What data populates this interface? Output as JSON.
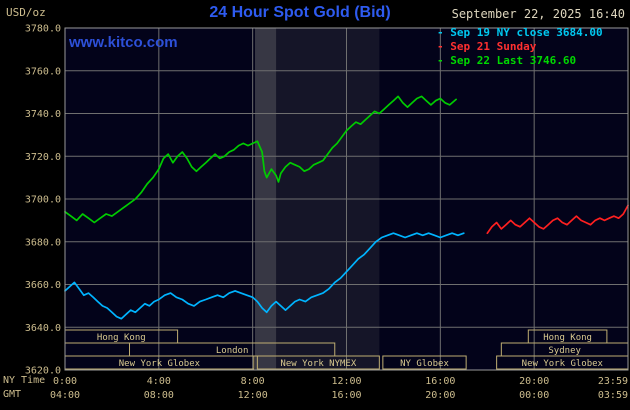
{
  "header": {
    "datetime": "September 22, 2025 16:40",
    "unit_label": "USD/oz",
    "website": "www.kitco.com"
  },
  "colors": {
    "background": "#000000",
    "plot_background": "#03031a",
    "grid": "#6f6f6f",
    "border": "#9a9a9a",
    "axis_text": "#cdbd8e",
    "title_blue": "#2e5bf0",
    "link_blue": "#2d50d8",
    "session_box": "#bfae72",
    "session_text": "#d8c98f",
    "date_text": "#ded6be"
  },
  "chart_data": {
    "type": "line",
    "title": "24 Hour Spot Gold (Bid)",
    "y_unit": "USD/oz",
    "xlim_hours_ny": [
      0,
      24
    ],
    "ylim": [
      3620,
      3780
    ],
    "grid": true,
    "axis": {
      "ny_time_label": "NY Time",
      "gmt_label": "GMT",
      "x_ticks": [
        {
          "hour": 0,
          "ny": "0:00",
          "gmt": "04:00"
        },
        {
          "hour": 4,
          "ny": "4:00",
          "gmt": "08:00"
        },
        {
          "hour": 8,
          "ny": "8:00",
          "gmt": "12:00"
        },
        {
          "hour": 12,
          "ny": "12:00",
          "gmt": "16:00"
        },
        {
          "hour": 16,
          "ny": "16:00",
          "gmt": "20:00"
        },
        {
          "hour": 20,
          "ny": "20:00",
          "gmt": "00:00"
        },
        {
          "hour": 23.983,
          "ny": "23:59",
          "gmt": "03:59"
        }
      ],
      "y_ticks": [
        {
          "value": 3780,
          "label": "3780.0"
        },
        {
          "value": 3760,
          "label": "3760.0"
        },
        {
          "value": 3740,
          "label": "3740.0"
        },
        {
          "value": 3720,
          "label": "3720.0"
        },
        {
          "value": 3700,
          "label": "3700.0"
        },
        {
          "value": 3680,
          "label": "3680.0"
        },
        {
          "value": 3660,
          "label": "3660.0"
        },
        {
          "value": 3640,
          "label": "3640.0"
        },
        {
          "value": 3620,
          "label": "3620.0"
        }
      ]
    },
    "legend": {
      "items": [
        {
          "marker": "-",
          "label": "Sep 19 NY close 3684.00",
          "color": "#00c8f0"
        },
        {
          "marker": "-",
          "label": "Sep 21 Sunday",
          "color": "#ff3030"
        },
        {
          "marker": "-",
          "label": "Sep 22 Last 3746.60",
          "color": "#00d800"
        }
      ]
    },
    "series": [
      {
        "id": "sep19-line",
        "name": "Sep 19 NY close",
        "color": "#00b4ff",
        "close": 3684.0,
        "points": [
          [
            0,
            3657
          ],
          [
            0.2,
            3659
          ],
          [
            0.4,
            3661
          ],
          [
            0.6,
            3658
          ],
          [
            0.8,
            3655
          ],
          [
            1,
            3656
          ],
          [
            1.2,
            3654
          ],
          [
            1.4,
            3652
          ],
          [
            1.6,
            3650
          ],
          [
            1.8,
            3649
          ],
          [
            2,
            3647
          ],
          [
            2.2,
            3645
          ],
          [
            2.4,
            3644
          ],
          [
            2.6,
            3646
          ],
          [
            2.8,
            3648
          ],
          [
            3,
            3647
          ],
          [
            3.2,
            3649
          ],
          [
            3.4,
            3651
          ],
          [
            3.6,
            3650
          ],
          [
            3.8,
            3652
          ],
          [
            4,
            3653
          ],
          [
            4.25,
            3655
          ],
          [
            4.5,
            3656
          ],
          [
            4.75,
            3654
          ],
          [
            5,
            3653
          ],
          [
            5.25,
            3651
          ],
          [
            5.5,
            3650
          ],
          [
            5.75,
            3652
          ],
          [
            6,
            3653
          ],
          [
            6.25,
            3654
          ],
          [
            6.5,
            3655
          ],
          [
            6.75,
            3654
          ],
          [
            7,
            3656
          ],
          [
            7.25,
            3657
          ],
          [
            7.5,
            3656
          ],
          [
            7.75,
            3655
          ],
          [
            8,
            3654
          ],
          [
            8.2,
            3652
          ],
          [
            8.4,
            3649
          ],
          [
            8.6,
            3647
          ],
          [
            8.8,
            3650
          ],
          [
            9,
            3652
          ],
          [
            9.2,
            3650
          ],
          [
            9.4,
            3648
          ],
          [
            9.6,
            3650
          ],
          [
            9.8,
            3652
          ],
          [
            10,
            3653
          ],
          [
            10.25,
            3652
          ],
          [
            10.5,
            3654
          ],
          [
            10.75,
            3655
          ],
          [
            11,
            3656
          ],
          [
            11.25,
            3658
          ],
          [
            11.5,
            3661
          ],
          [
            11.75,
            3663
          ],
          [
            12,
            3666
          ],
          [
            12.25,
            3669
          ],
          [
            12.5,
            3672
          ],
          [
            12.75,
            3674
          ],
          [
            13,
            3677
          ],
          [
            13.25,
            3680
          ],
          [
            13.5,
            3682
          ],
          [
            13.75,
            3683
          ],
          [
            14,
            3684
          ],
          [
            14.25,
            3683
          ],
          [
            14.5,
            3682
          ],
          [
            14.75,
            3683
          ],
          [
            15,
            3684
          ],
          [
            15.25,
            3683
          ],
          [
            15.5,
            3684
          ],
          [
            15.75,
            3683
          ],
          [
            16,
            3682
          ],
          [
            16.25,
            3683
          ],
          [
            16.5,
            3684
          ],
          [
            16.75,
            3683
          ],
          [
            17,
            3684
          ]
        ]
      },
      {
        "id": "sep21-line",
        "name": "Sep 21 Sunday",
        "color": "#ff2020",
        "points": [
          [
            18,
            3684
          ],
          [
            18.2,
            3687
          ],
          [
            18.4,
            3689
          ],
          [
            18.6,
            3686
          ],
          [
            18.8,
            3688
          ],
          [
            19,
            3690
          ],
          [
            19.2,
            3688
          ],
          [
            19.4,
            3687
          ],
          [
            19.6,
            3689
          ],
          [
            19.8,
            3691
          ],
          [
            20,
            3689
          ],
          [
            20.2,
            3687
          ],
          [
            20.4,
            3686
          ],
          [
            20.6,
            3688
          ],
          [
            20.8,
            3690
          ],
          [
            21,
            3691
          ],
          [
            21.2,
            3689
          ],
          [
            21.4,
            3688
          ],
          [
            21.6,
            3690
          ],
          [
            21.8,
            3692
          ],
          [
            22,
            3690
          ],
          [
            22.2,
            3689
          ],
          [
            22.4,
            3688
          ],
          [
            22.6,
            3690
          ],
          [
            22.8,
            3691
          ],
          [
            23,
            3690
          ],
          [
            23.2,
            3691
          ],
          [
            23.4,
            3692
          ],
          [
            23.6,
            3691
          ],
          [
            23.8,
            3693
          ],
          [
            24,
            3697
          ]
        ]
      },
      {
        "id": "sep22-line",
        "name": "Sep 22 Last",
        "color": "#00cc00",
        "last": 3746.6,
        "points": [
          [
            0,
            3694
          ],
          [
            0.25,
            3692
          ],
          [
            0.5,
            3690
          ],
          [
            0.75,
            3693
          ],
          [
            1,
            3691
          ],
          [
            1.25,
            3689
          ],
          [
            1.5,
            3691
          ],
          [
            1.75,
            3693
          ],
          [
            2,
            3692
          ],
          [
            2.25,
            3694
          ],
          [
            2.5,
            3696
          ],
          [
            2.75,
            3698
          ],
          [
            3,
            3700
          ],
          [
            3.25,
            3703
          ],
          [
            3.5,
            3707
          ],
          [
            3.75,
            3710
          ],
          [
            4,
            3714
          ],
          [
            4.2,
            3719
          ],
          [
            4.4,
            3721
          ],
          [
            4.6,
            3717
          ],
          [
            4.8,
            3720
          ],
          [
            5,
            3722
          ],
          [
            5.2,
            3719
          ],
          [
            5.4,
            3715
          ],
          [
            5.6,
            3713
          ],
          [
            5.8,
            3715
          ],
          [
            6,
            3717
          ],
          [
            6.2,
            3719
          ],
          [
            6.4,
            3721
          ],
          [
            6.6,
            3719
          ],
          [
            6.8,
            3720
          ],
          [
            7,
            3722
          ],
          [
            7.2,
            3723
          ],
          [
            7.4,
            3725
          ],
          [
            7.6,
            3726
          ],
          [
            7.8,
            3725
          ],
          [
            8,
            3726
          ],
          [
            8.2,
            3727
          ],
          [
            8.4,
            3722
          ],
          [
            8.5,
            3713
          ],
          [
            8.6,
            3710
          ],
          [
            8.8,
            3714
          ],
          [
            9,
            3711
          ],
          [
            9.1,
            3708
          ],
          [
            9.2,
            3712
          ],
          [
            9.4,
            3715
          ],
          [
            9.6,
            3717
          ],
          [
            9.8,
            3716
          ],
          [
            10,
            3715
          ],
          [
            10.2,
            3713
          ],
          [
            10.4,
            3714
          ],
          [
            10.6,
            3716
          ],
          [
            10.8,
            3717
          ],
          [
            11,
            3718
          ],
          [
            11.2,
            3721
          ],
          [
            11.4,
            3724
          ],
          [
            11.6,
            3726
          ],
          [
            11.8,
            3729
          ],
          [
            12,
            3732
          ],
          [
            12.2,
            3734
          ],
          [
            12.4,
            3736
          ],
          [
            12.6,
            3735
          ],
          [
            12.8,
            3737
          ],
          [
            13,
            3739
          ],
          [
            13.2,
            3741
          ],
          [
            13.4,
            3740
          ],
          [
            13.6,
            3742
          ],
          [
            13.8,
            3744
          ],
          [
            14,
            3746
          ],
          [
            14.2,
            3748
          ],
          [
            14.4,
            3745
          ],
          [
            14.6,
            3743
          ],
          [
            14.8,
            3745
          ],
          [
            15,
            3747
          ],
          [
            15.2,
            3748
          ],
          [
            15.4,
            3746
          ],
          [
            15.6,
            3744
          ],
          [
            15.8,
            3746
          ],
          [
            16,
            3747
          ],
          [
            16.2,
            3745
          ],
          [
            16.4,
            3744
          ],
          [
            16.67,
            3746.6
          ]
        ]
      }
    ],
    "sessions": [
      {
        "label": "Hong Kong",
        "row": 1,
        "start": 0,
        "end": 4.8
      },
      {
        "label": "London",
        "row": 2,
        "start": 2.75,
        "end": 11.5
      },
      {
        "label": "New York Globex",
        "row": 3,
        "start": 0,
        "end": 8.05
      },
      {
        "label": "New York NYMEX",
        "row": 3,
        "start": 8.2,
        "end": 13.4
      },
      {
        "label": "NY Globex",
        "row": 3,
        "start": 13.55,
        "end": 17.1
      },
      {
        "label": "New York Globex",
        "row": 3,
        "start": 18.4,
        "end": 24
      },
      {
        "label": "Sydney",
        "row": 2,
        "start": 18.6,
        "end": 24
      },
      {
        "label": "Hong Kong",
        "row": 1,
        "start": 19.75,
        "end": 23.1
      }
    ],
    "bands": [
      {
        "start": 8.1,
        "end": 9.0,
        "color": "rgba(120,120,120,0.45)"
      },
      {
        "start": 9.0,
        "end": 13.4,
        "color": "rgba(120,120,120,0.16)"
      }
    ]
  }
}
